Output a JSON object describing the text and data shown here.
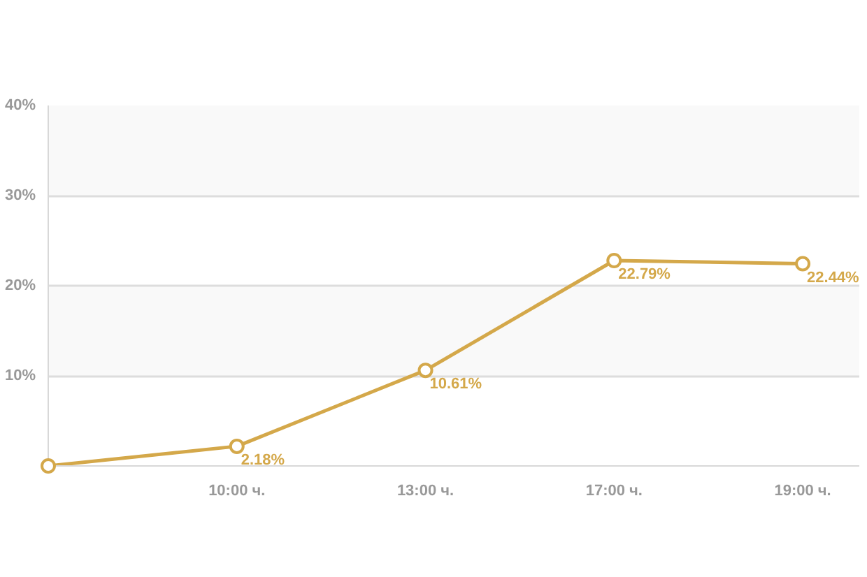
{
  "chart_data": {
    "type": "line",
    "categories": [
      null,
      "10:00 ч.",
      "13:00 ч.",
      "17:00 ч.",
      "19:00 ч."
    ],
    "series": [
      {
        "color": "#d4a84a",
        "values": [
          0,
          2.18,
          10.61,
          22.79,
          22.44
        ],
        "value_labels": [
          null,
          "2.18%",
          "10.61%",
          "22.79%",
          "22.44%"
        ]
      }
    ],
    "ylim": [
      0,
      40
    ],
    "yticks": [
      {
        "value": 0,
        "label": null
      },
      {
        "value": 10,
        "label": "10%"
      },
      {
        "value": 20,
        "label": "20%"
      },
      {
        "value": 30,
        "label": "30%"
      },
      {
        "value": 40,
        "label": "40%"
      }
    ],
    "grid": "y",
    "marker": "circle",
    "line_style": "solid",
    "bands": [
      {
        "axis": "y",
        "from": 10,
        "to": 20,
        "color": "#f9f9f9"
      },
      {
        "axis": "y",
        "from": 30,
        "to": 40,
        "color": "#f9f9f9"
      }
    ]
  }
}
